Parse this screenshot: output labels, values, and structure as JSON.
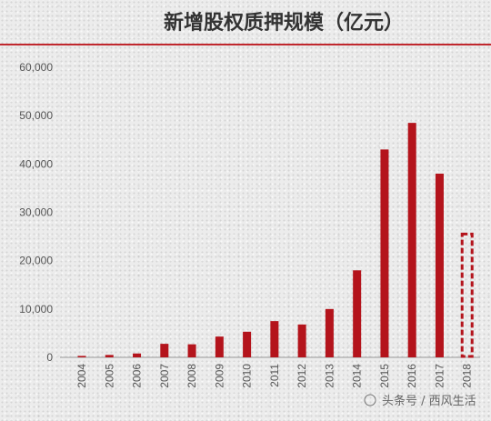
{
  "chart_data": {
    "type": "bar",
    "title": "新增股权质押规模（亿元）",
    "xlabel": "",
    "ylabel": "",
    "categories": [
      "2004",
      "2005",
      "2006",
      "2007",
      "2008",
      "2009",
      "2010",
      "2011",
      "2012",
      "2013",
      "2014",
      "2015",
      "2016",
      "2017",
      "2018"
    ],
    "values": [
      300,
      500,
      800,
      2800,
      2700,
      4300,
      5300,
      7500,
      6800,
      10000,
      18000,
      43000,
      48500,
      38000,
      25500
    ],
    "ylim": [
      0,
      60000
    ],
    "yticks": [
      0,
      10000,
      20000,
      30000,
      40000,
      50000,
      60000
    ],
    "ytick_labels": [
      "0",
      "10,000",
      "20,000",
      "30,000",
      "40,000",
      "50,000",
      "60,000"
    ],
    "grid": false,
    "bar_color": "#b4141c",
    "dashed_last_bar": true,
    "title_rule_color": "#c0272d"
  },
  "watermark": {
    "text": "头条号 / 西风生活"
  }
}
